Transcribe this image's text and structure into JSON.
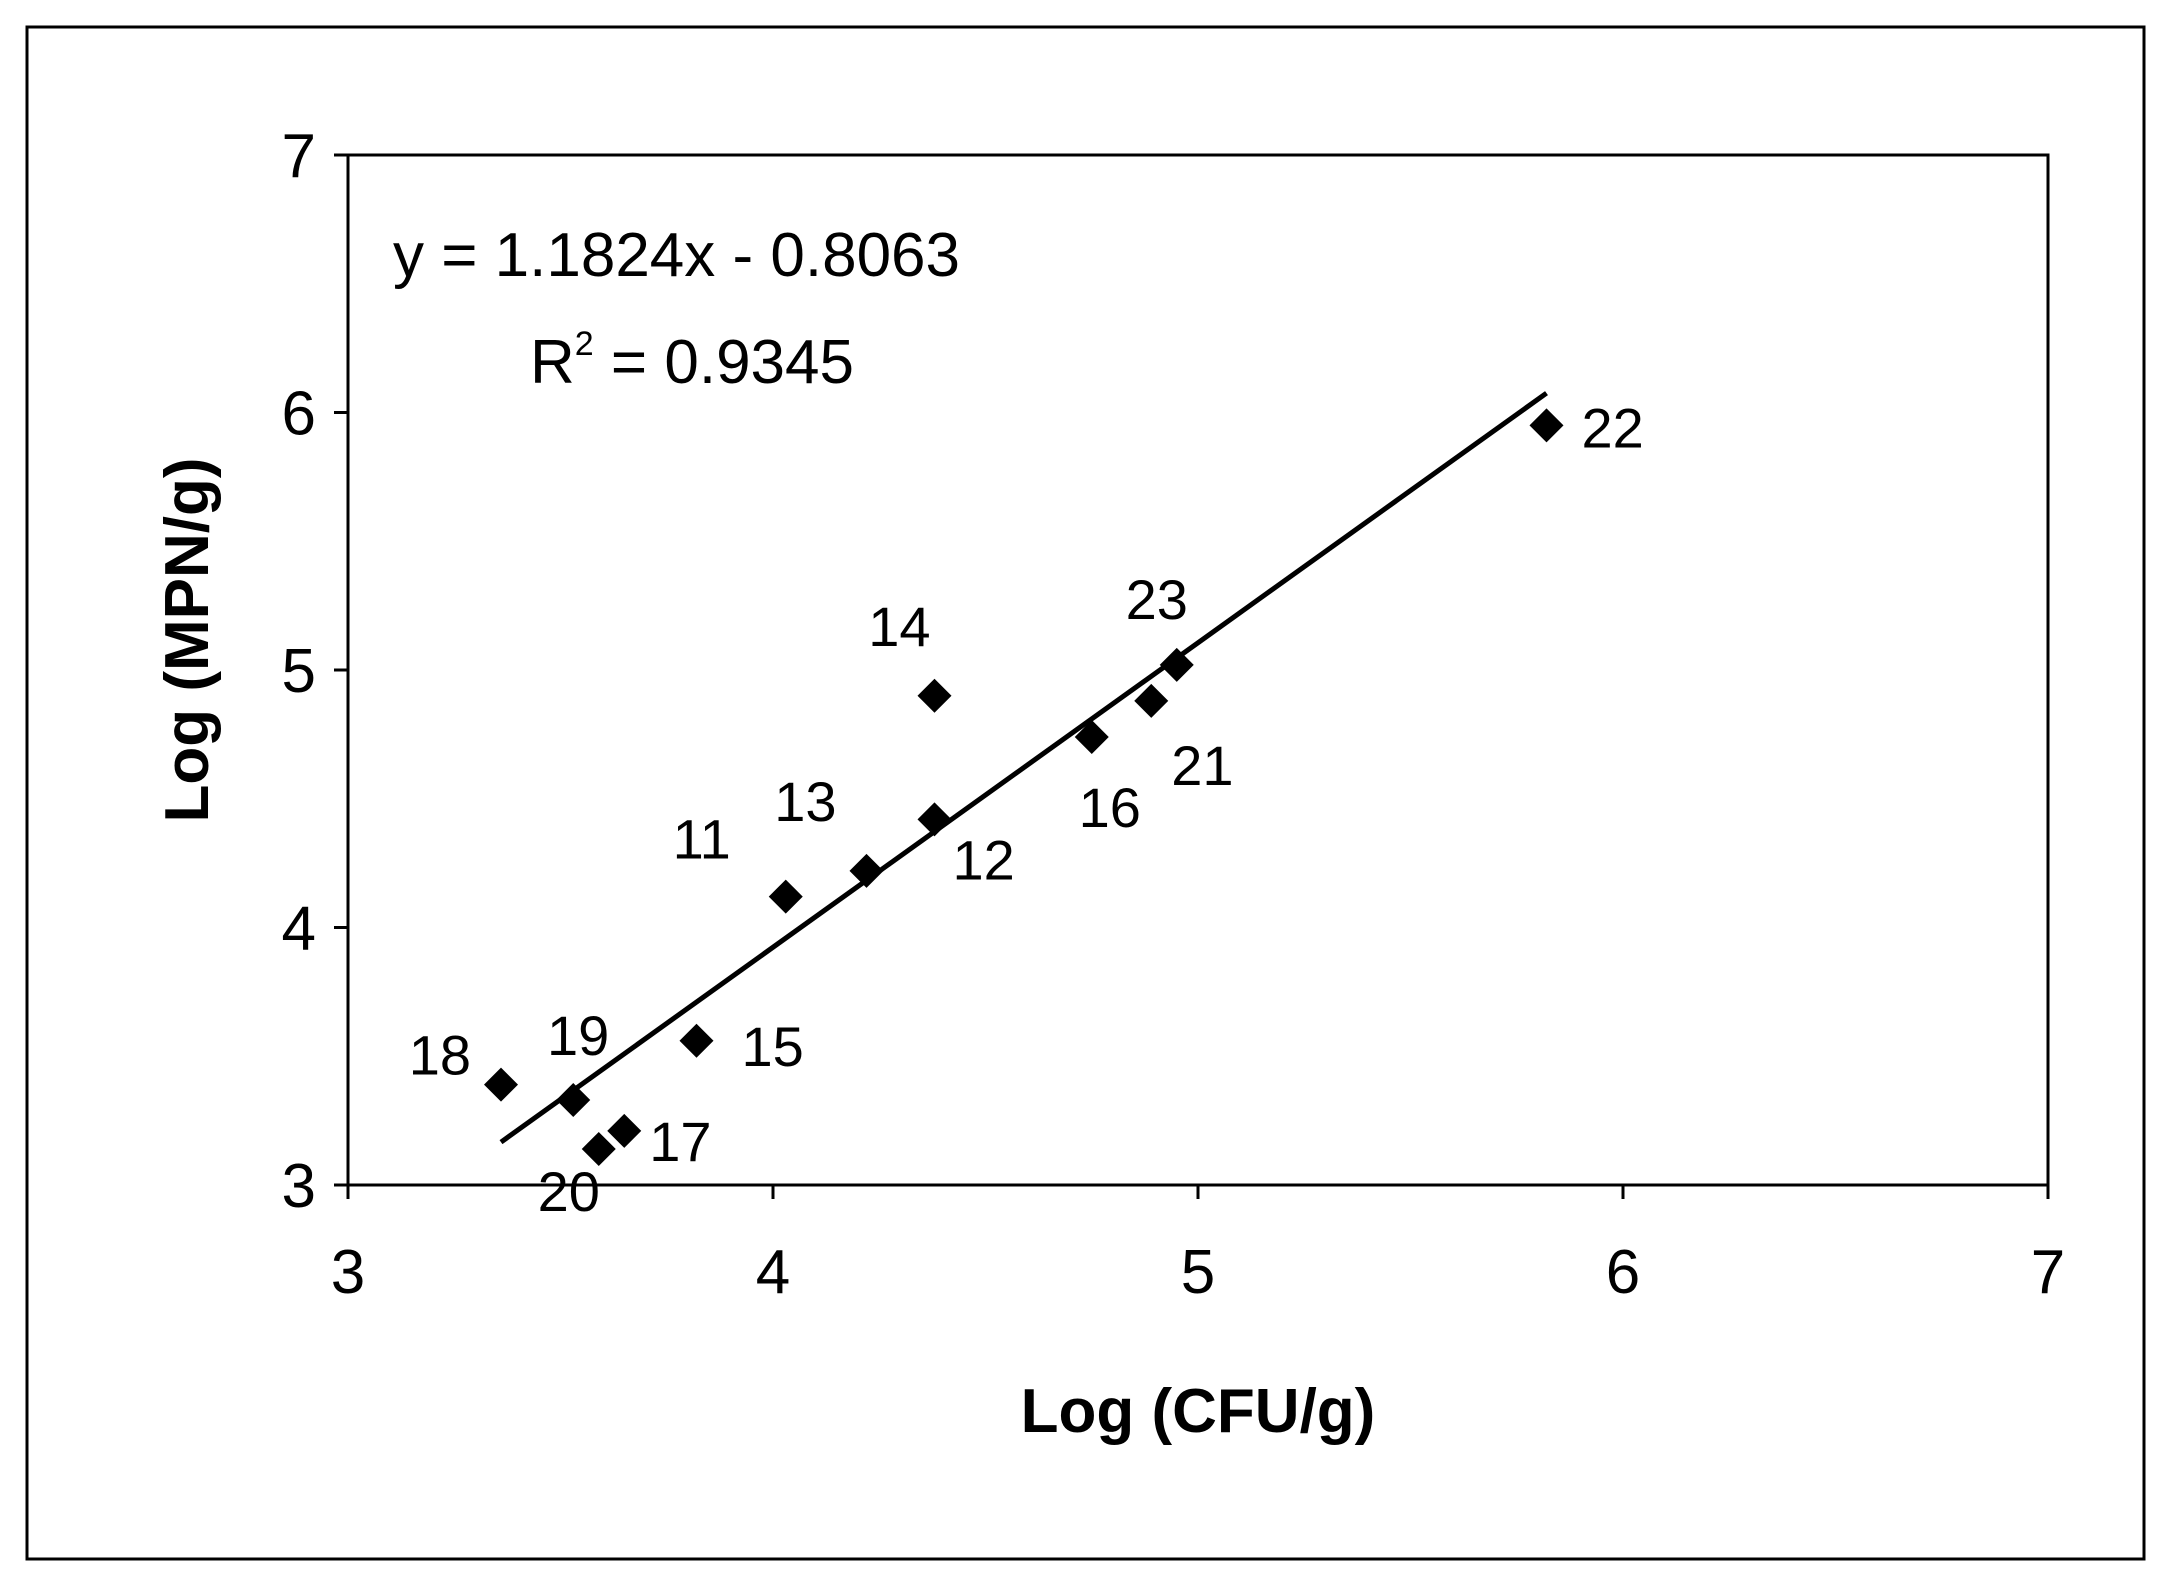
{
  "chart_data": {
    "type": "scatter",
    "xlabel": "Log (CFU/g)",
    "ylabel": "Log (MPN/g)",
    "xlim": [
      3,
      7
    ],
    "ylim": [
      3,
      7
    ],
    "x_ticks": [
      "3",
      "4",
      "5",
      "6",
      "7"
    ],
    "y_ticks": [
      "3",
      "4",
      "5",
      "6",
      "7"
    ],
    "grid": false,
    "marker": "diamond",
    "marker_color": "#000000",
    "points": [
      {
        "label": "11",
        "x": 4.03,
        "y": 4.12
      },
      {
        "label": "12",
        "x": 4.38,
        "y": 4.42
      },
      {
        "label": "13",
        "x": 4.22,
        "y": 4.22
      },
      {
        "label": "14",
        "x": 4.38,
        "y": 4.9
      },
      {
        "label": "15",
        "x": 3.82,
        "y": 3.56
      },
      {
        "label": "16",
        "x": 4.75,
        "y": 4.74
      },
      {
        "label": "17",
        "x": 3.65,
        "y": 3.21
      },
      {
        "label": "18",
        "x": 3.36,
        "y": 3.39
      },
      {
        "label": "19",
        "x": 3.53,
        "y": 3.33
      },
      {
        "label": "20",
        "x": 3.59,
        "y": 3.14
      },
      {
        "label": "21",
        "x": 4.89,
        "y": 4.88
      },
      {
        "label": "22",
        "x": 5.82,
        "y": 5.95
      },
      {
        "label": "23",
        "x": 4.95,
        "y": 5.02
      }
    ],
    "trendline": {
      "slope": 1.1824,
      "intercept": -0.8063,
      "x_range": [
        3.36,
        5.82
      ],
      "equation_text": "y = 1.1824x - 0.8063",
      "r2_prefix": "R",
      "r2_superscript": "2",
      "r2_value": " = 0.9345"
    }
  }
}
